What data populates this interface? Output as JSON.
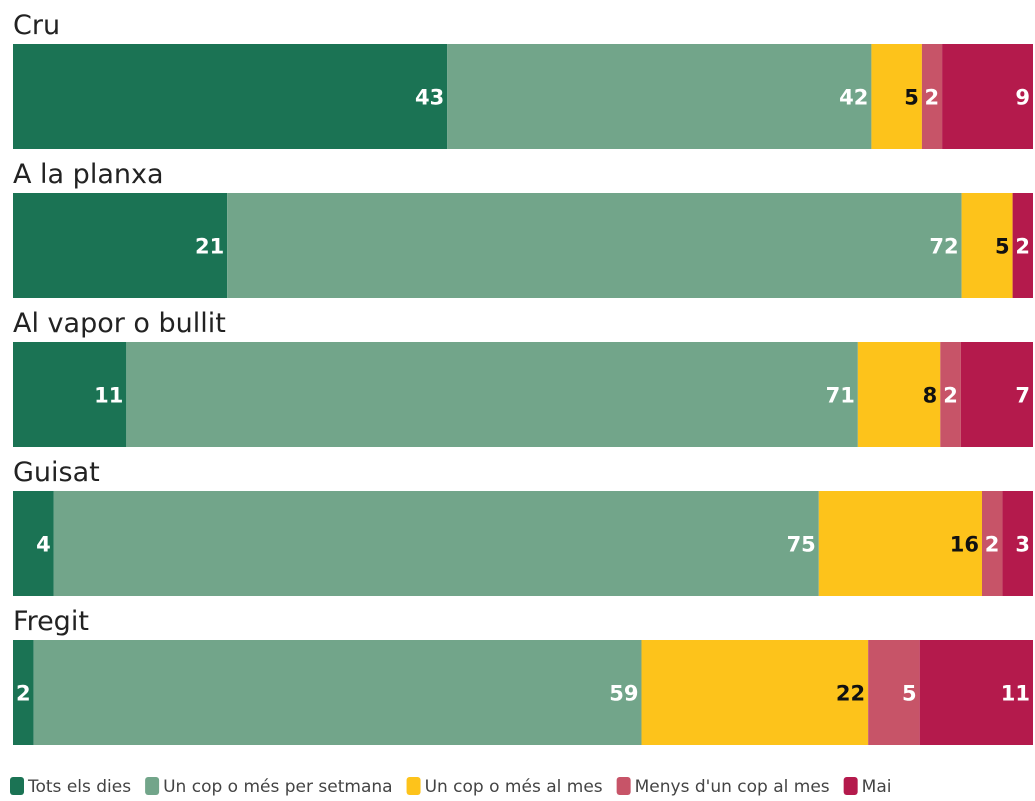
{
  "chart_data": {
    "type": "bar",
    "orientation": "horizontal",
    "stacked": true,
    "categories": [
      "Cru",
      "A la planxa",
      "Al vapor o bullit",
      "Guisat",
      "Fregit"
    ],
    "series": [
      {
        "name": "Tots els dies",
        "color": "#1b7354",
        "label_color": "#ffffff",
        "values": [
          43,
          21,
          11,
          4,
          2
        ]
      },
      {
        "name": "Un cop o més per setmana",
        "color": "#72a58a",
        "label_color": "#ffffff",
        "values": [
          42,
          72,
          71,
          75,
          59
        ]
      },
      {
        "name": "Un cop o més al mes",
        "color": "#fdc31b",
        "label_color": "#111111",
        "values": [
          5,
          5,
          8,
          16,
          22
        ]
      },
      {
        "name": "Menys d'un cop al mes",
        "color": "#c75468",
        "label_color": "#ffffff",
        "values": [
          2,
          0,
          2,
          2,
          5
        ]
      },
      {
        "name": "Mai",
        "color": "#b41a4c",
        "label_color": "#ffffff",
        "values": [
          9,
          2,
          7,
          3,
          11
        ]
      }
    ],
    "value_labels": [
      [
        "43",
        "42",
        "5",
        "2",
        "9"
      ],
      [
        "21",
        "72",
        "5",
        "",
        "2"
      ],
      [
        "11",
        "71",
        "8",
        "2",
        "7"
      ],
      [
        "4",
        "75",
        "16",
        "2",
        "3"
      ],
      [
        "2",
        "59",
        "22",
        "5",
        "11"
      ]
    ],
    "xlim": [
      0,
      100
    ],
    "grid": false,
    "legend_position": "bottom-left"
  }
}
